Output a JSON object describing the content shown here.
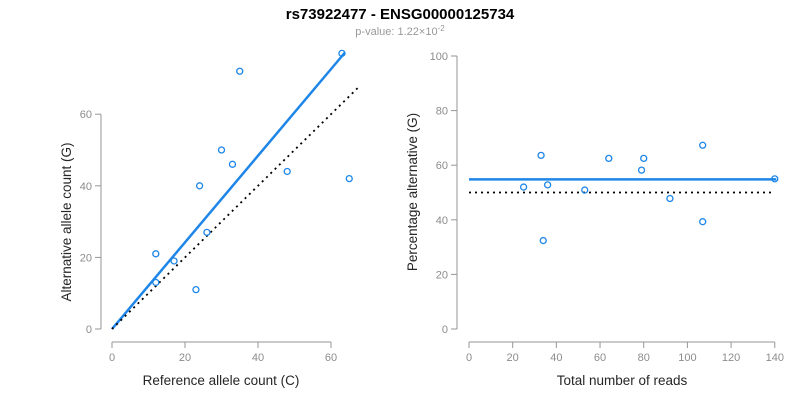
{
  "header": {
    "title": "rs73922477 - ENSG00000125734",
    "pvalue_text": "p-value: 1.22×10",
    "pvalue_exponent": "-2"
  },
  "colors": {
    "accent_blue": "#1e86e8",
    "identity_black": "#000000",
    "axis_gray": "#969696",
    "tick_label_gray": "#8c8c8c",
    "axis_title_color": "#262626",
    "title_color": "#000000",
    "subtitle_gray": "#999999",
    "background": "#ffffff"
  },
  "chart_data": [
    {
      "type": "scatter",
      "title": "",
      "xlabel": "Reference allele count (C)",
      "ylabel": "Alternative allele count (G)",
      "xlim": [
        0,
        65
      ],
      "ylim": [
        0,
        78
      ],
      "xticks": [
        0,
        20,
        40,
        60
      ],
      "yticks": [
        0,
        20,
        40,
        60
      ],
      "grid": false,
      "legend": "none",
      "points": [
        [
          12,
          13
        ],
        [
          12,
          21
        ],
        [
          17,
          19
        ],
        [
          23,
          11
        ],
        [
          24,
          40
        ],
        [
          26,
          27
        ],
        [
          30,
          50
        ],
        [
          33,
          46
        ],
        [
          35,
          72
        ],
        [
          48,
          44
        ],
        [
          63,
          77
        ],
        [
          65,
          42
        ]
      ],
      "lines": [
        {
          "name": "fit-line",
          "style": "solid",
          "color": "#1e86e8",
          "x1": 0,
          "y1": 0,
          "x2": 63.8,
          "y2": 77.2
        },
        {
          "name": "identity-line",
          "style": "dotted",
          "color": "#000000",
          "x1": 0,
          "y1": 0,
          "x2": 68,
          "y2": 68
        }
      ]
    },
    {
      "type": "scatter",
      "title": "",
      "xlabel": "Total number of reads",
      "ylabel": "Percentage alternative (G)",
      "xlim": [
        0,
        141
      ],
      "ylim": [
        0,
        100
      ],
      "xticks": [
        0,
        20,
        40,
        60,
        80,
        100,
        120,
        140
      ],
      "yticks": [
        0,
        20,
        40,
        60,
        80,
        100
      ],
      "grid": false,
      "legend": "none",
      "points": [
        [
          25,
          52.0
        ],
        [
          33,
          63.6
        ],
        [
          34,
          32.4
        ],
        [
          36,
          52.8
        ],
        [
          53,
          50.9
        ],
        [
          64,
          62.5
        ],
        [
          79,
          58.2
        ],
        [
          80,
          62.5
        ],
        [
          92,
          47.8
        ],
        [
          107,
          39.3
        ],
        [
          107,
          67.3
        ],
        [
          140,
          55.0
        ]
      ],
      "lines": [
        {
          "name": "fit-line",
          "style": "solid",
          "color": "#1e86e8",
          "x1": 0,
          "y1": 54.8,
          "x2": 140.7,
          "y2": 54.8
        },
        {
          "name": "reference-line",
          "style": "dotted",
          "color": "#000000",
          "x1": 0,
          "y1": 50,
          "x2": 140,
          "y2": 50
        }
      ]
    }
  ]
}
